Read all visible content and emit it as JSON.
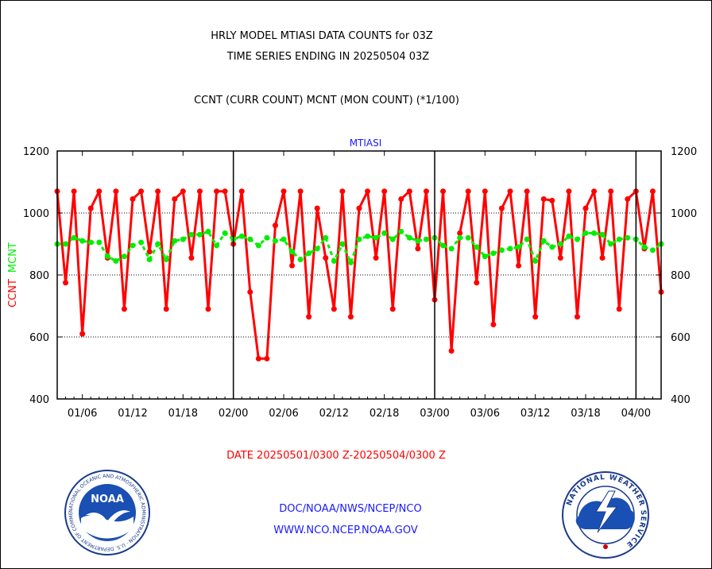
{
  "header": {
    "title": "HRLY MODEL MTIASI DATA COUNTS for 03Z",
    "subtitle": "TIME SERIES ENDING IN 20250504 03Z",
    "legend_line": "CCNT (CURR COUNT) MCNT (MON COUNT) (*1/100)"
  },
  "footer": {
    "date_range": "DATE 20250501/0300 Z-20250504/0300 Z",
    "link1": "DOC/NOAA/NWS/NCEP/NCO",
    "link2": "WWW.NCO.NCEP.NOAA.GOV"
  },
  "logos": {
    "noaa_text": "NOAA",
    "noaa_ring": "NATIONAL OCEANIC AND ATMOSPHERIC ADMINISTRATION · U.S. DEPARTMENT OF COMMERCE",
    "nws_ring": "NATIONAL WEATHER SERVICE"
  },
  "colors": {
    "ccnt": "#ff0000",
    "mcnt": "#00ee00",
    "panel_title": "#1a1aff"
  },
  "chart_data": {
    "type": "line",
    "panel_title": "MTIASI",
    "ylabel_left": [
      "CCNT",
      "MCNT"
    ],
    "ylim": [
      400,
      1200
    ],
    "yticks": [
      400,
      600,
      800,
      1000,
      1200
    ],
    "grid": true,
    "x_tick_labels": [
      "01/06",
      "01/12",
      "01/18",
      "02/00",
      "02/06",
      "02/12",
      "02/18",
      "03/00",
      "03/06",
      "03/12",
      "03/18",
      "04/00"
    ],
    "day_boundaries": [
      "02/00",
      "03/00",
      "04/00"
    ],
    "x_unit": "hours since 05/01 03Z",
    "x_range": [
      0,
      72
    ],
    "series": [
      {
        "name": "CCNT",
        "x": [
          0,
          1,
          2,
          3,
          4,
          5,
          6,
          7,
          8,
          9,
          10,
          11,
          12,
          13,
          14,
          15,
          16,
          17,
          18,
          19,
          20,
          21,
          22,
          23,
          24,
          25,
          26,
          27,
          28,
          29,
          30,
          31,
          32,
          33,
          34,
          35,
          36,
          37,
          38,
          39,
          40,
          41,
          42,
          43,
          44,
          45,
          46,
          47,
          48,
          49,
          50,
          51,
          52,
          53,
          54,
          55,
          56,
          57,
          58,
          59,
          60,
          61,
          62,
          63,
          64,
          65,
          66,
          67,
          68,
          69,
          70,
          71,
          72
        ],
        "values": [
          1070,
          775,
          1070,
          610,
          1015,
          1070,
          855,
          1070,
          690,
          1045,
          1070,
          875,
          1070,
          690,
          1045,
          1070,
          855,
          1070,
          690,
          1070,
          1070,
          900,
          1070,
          745,
          530,
          530,
          960,
          1070,
          830,
          1070,
          665,
          1015,
          855,
          690,
          1070,
          665,
          1015,
          1070,
          855,
          1070,
          690,
          1045,
          1070,
          885,
          1070,
          720,
          1070,
          555,
          935,
          1070,
          775,
          1070,
          640,
          1015,
          1070,
          830,
          1070,
          665,
          1045,
          1040,
          855,
          1070,
          665,
          1015,
          1070,
          855,
          1070,
          690,
          1045,
          1070,
          885,
          1070,
          745
        ]
      },
      {
        "name": "MCNT",
        "x": [
          0,
          1,
          2,
          3,
          4,
          5,
          6,
          7,
          8,
          9,
          10,
          11,
          12,
          13,
          14,
          15,
          16,
          17,
          18,
          19,
          20,
          21,
          22,
          23,
          24,
          25,
          26,
          27,
          28,
          29,
          30,
          31,
          32,
          33,
          34,
          35,
          36,
          37,
          38,
          39,
          40,
          41,
          42,
          43,
          44,
          45,
          46,
          47,
          48,
          49,
          50,
          51,
          52,
          53,
          54,
          55,
          56,
          57,
          58,
          59,
          60,
          61,
          62,
          63,
          64,
          65,
          66,
          67,
          68,
          69,
          70,
          71,
          72
        ],
        "values": [
          900,
          900,
          920,
          910,
          905,
          905,
          860,
          845,
          860,
          895,
          905,
          850,
          900,
          850,
          910,
          915,
          930,
          930,
          940,
          895,
          935,
          915,
          925,
          915,
          895,
          920,
          910,
          915,
          875,
          850,
          870,
          885,
          920,
          845,
          900,
          840,
          915,
          925,
          920,
          935,
          915,
          940,
          920,
          910,
          915,
          920,
          895,
          885,
          920,
          920,
          890,
          860,
          870,
          880,
          885,
          890,
          915,
          845,
          910,
          890,
          900,
          925,
          915,
          935,
          935,
          930,
          900,
          915,
          920,
          915,
          890,
          880,
          900
        ]
      }
    ]
  }
}
